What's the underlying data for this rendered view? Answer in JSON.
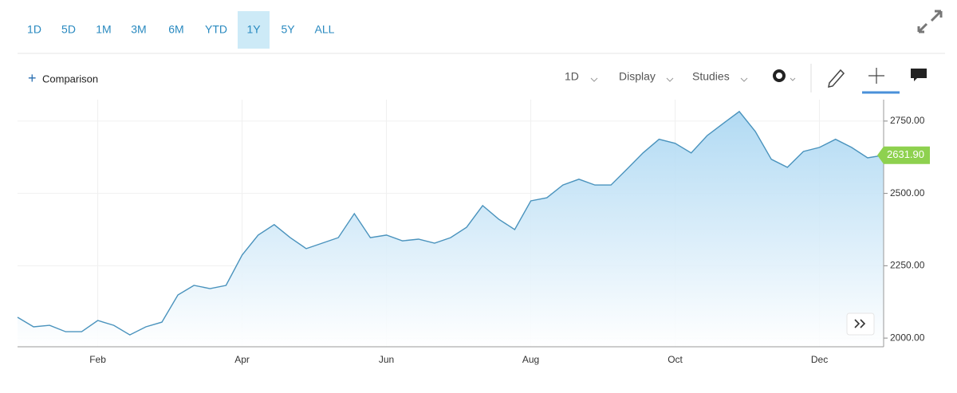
{
  "toolbar": {
    "ranges": [
      "1D",
      "5D",
      "1M",
      "3M",
      "6M",
      "YTD",
      "1Y",
      "5Y",
      "ALL"
    ],
    "active_range": "1Y",
    "comparison": "Comparison",
    "interval": "1D",
    "display": "Display",
    "studies": "Studies"
  },
  "chart_data": {
    "type": "area",
    "categories": [
      null,
      null,
      null,
      null,
      null,
      "Feb",
      null,
      null,
      null,
      null,
      null,
      null,
      null,
      null,
      "Apr",
      null,
      null,
      null,
      null,
      null,
      null,
      null,
      null,
      "Jun",
      null,
      null,
      null,
      null,
      null,
      null,
      null,
      null,
      "Aug",
      null,
      null,
      null,
      null,
      null,
      null,
      null,
      null,
      "Oct",
      null,
      null,
      null,
      null,
      null,
      null,
      null,
      null,
      "Dec",
      null,
      null,
      null,
      null
    ],
    "series": [
      {
        "color": "#4a93bd",
        "values": [
          2072,
          2039,
          2044,
          2022,
          2022,
          2061,
          2044,
          2011,
          2039,
          2055,
          2149,
          2182,
          2171,
          2182,
          2287,
          2356,
          2392,
          2347,
          2309,
          2328,
          2347,
          2430,
          2347,
          2356,
          2336,
          2342,
          2328,
          2347,
          2383,
          2458,
          2411,
          2375,
          2474,
          2485,
          2529,
          2549,
          2529,
          2529,
          2584,
          2640,
          2687,
          2673,
          2640,
          2700,
          2742,
          2783,
          2714,
          2618,
          2590,
          2645,
          2659,
          2687,
          2659,
          2623,
          2631.9
        ],
        "value_labels": [
          null,
          null,
          null,
          null,
          null,
          null,
          null,
          null,
          null,
          null,
          null,
          null,
          null,
          null,
          null,
          null,
          null,
          null,
          null,
          null,
          null,
          null,
          null,
          null,
          null,
          null,
          null,
          null,
          null,
          null,
          null,
          null,
          null,
          null,
          null,
          null,
          null,
          null,
          null,
          null,
          null,
          null,
          null,
          null,
          null,
          null,
          null,
          null,
          null,
          null,
          null,
          null,
          null,
          null,
          "2631.90"
        ]
      }
    ],
    "ylim": [
      1970,
      2824
    ],
    "yticks": [
      {
        "value": 2000,
        "label": "2000.00"
      },
      {
        "value": 2250,
        "label": "2250.00"
      },
      {
        "value": 2500,
        "label": "2500.00"
      },
      {
        "value": 2750,
        "label": "2750.00"
      }
    ],
    "grid": true,
    "price_tag_color": "#8ed14f"
  }
}
